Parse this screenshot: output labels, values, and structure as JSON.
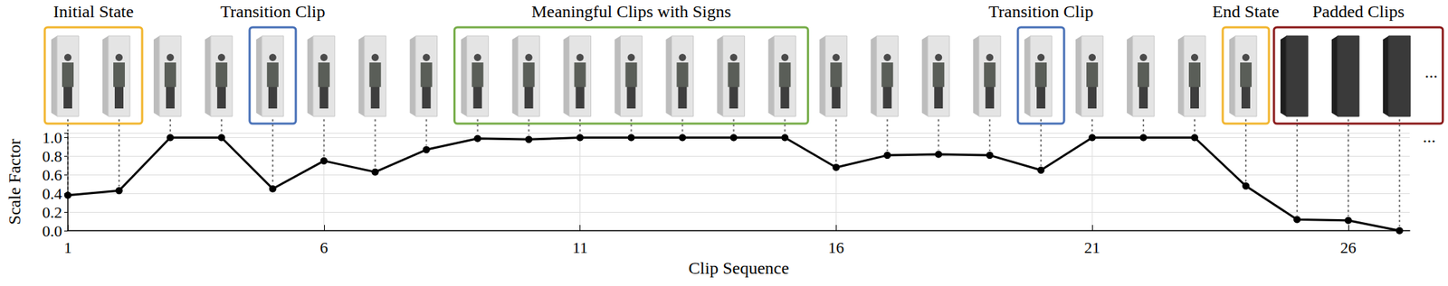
{
  "chart_data": {
    "type": "line",
    "x_label": "Clip Sequence",
    "y_label": "Scale Factor",
    "x": [
      1,
      2,
      3,
      4,
      5,
      6,
      7,
      8,
      9,
      10,
      11,
      12,
      13,
      14,
      15,
      16,
      17,
      18,
      19,
      20,
      21,
      22,
      23,
      24,
      25,
      26,
      27
    ],
    "values": [
      0.38,
      0.43,
      1.0,
      1.0,
      0.45,
      0.75,
      0.63,
      0.87,
      0.99,
      0.98,
      1.0,
      1.0,
      1.0,
      1.0,
      1.0,
      0.68,
      0.81,
      0.82,
      0.81,
      0.65,
      1.0,
      1.0,
      1.0,
      0.48,
      0.12,
      0.11,
      0.0
    ],
    "color": "#000000",
    "marker": "circle",
    "xlim": [
      1,
      27.2
    ],
    "xticks": [
      1,
      6,
      11,
      16,
      21,
      26
    ],
    "ylim": [
      0,
      1.05
    ],
    "yticks": [
      {
        "value": 0,
        "label": "0.0"
      },
      {
        "value": 0.2,
        "label": "0.2"
      },
      {
        "value": 0.4,
        "label": "0.4"
      },
      {
        "value": 0.6,
        "label": "0.6"
      },
      {
        "value": 0.8,
        "label": "0.8"
      },
      {
        "value": 1.0,
        "label": "1.0"
      }
    ],
    "grid": true,
    "ellipsis": "...",
    "annotations": [
      {
        "text": "Initial State",
        "clips": [
          1,
          2
        ],
        "color": "#f2b630"
      },
      {
        "text": "Transition Clip",
        "clips": [
          5,
          5
        ],
        "color": "#4a72b8"
      },
      {
        "text": "Meaningful Clips with Signs",
        "clips": [
          9,
          15
        ],
        "color": "#77ad49"
      },
      {
        "text": "Transition Clip",
        "clips": [
          20,
          20
        ],
        "color": "#4a72b8"
      },
      {
        "text": "End State",
        "clips": [
          24,
          24
        ],
        "color": "#f2b630"
      },
      {
        "text": "Padded Clips",
        "clips": [
          25,
          27
        ],
        "color": "#8b1a1a",
        "frame_color": "#3a3a3a"
      }
    ]
  }
}
